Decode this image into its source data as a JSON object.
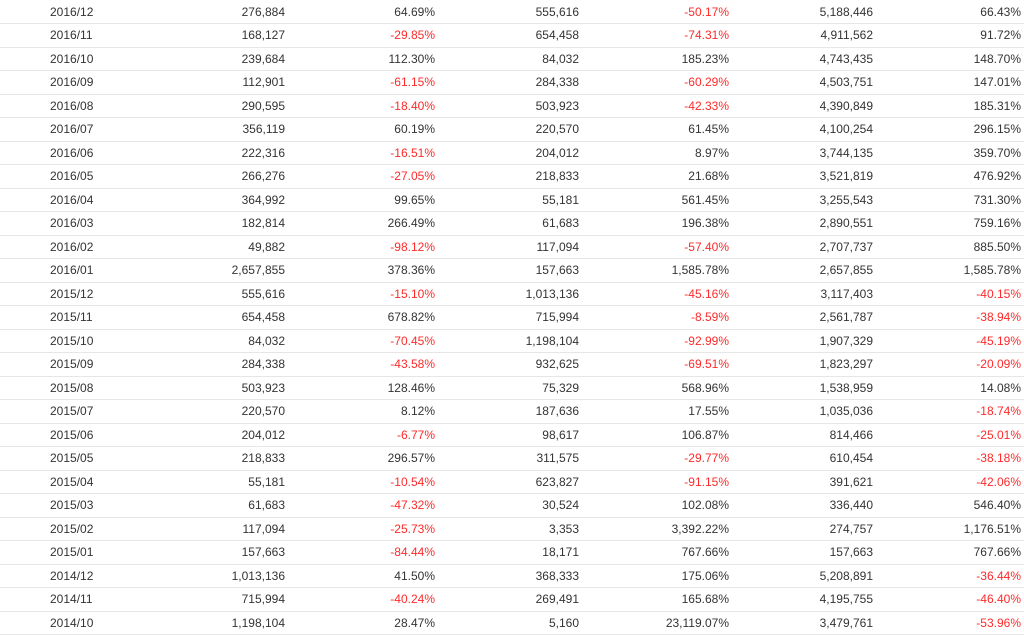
{
  "colors": {
    "text": "#333333",
    "negative": "#ff2a2a",
    "row_border": "#e6e6e6"
  },
  "rows": [
    {
      "month": "2016/12",
      "c1": "276,884",
      "c2": "64.69%",
      "c3": "555,616",
      "c4": "-50.17%",
      "c5": "5,188,446",
      "c6": "66.43%"
    },
    {
      "month": "2016/11",
      "c1": "168,127",
      "c2": "-29.85%",
      "c3": "654,458",
      "c4": "-74.31%",
      "c5": "4,911,562",
      "c6": "91.72%"
    },
    {
      "month": "2016/10",
      "c1": "239,684",
      "c2": "112.30%",
      "c3": "84,032",
      "c4": "185.23%",
      "c5": "4,743,435",
      "c6": "148.70%"
    },
    {
      "month": "2016/09",
      "c1": "112,901",
      "c2": "-61.15%",
      "c3": "284,338",
      "c4": "-60.29%",
      "c5": "4,503,751",
      "c6": "147.01%"
    },
    {
      "month": "2016/08",
      "c1": "290,595",
      "c2": "-18.40%",
      "c3": "503,923",
      "c4": "-42.33%",
      "c5": "4,390,849",
      "c6": "185.31%"
    },
    {
      "month": "2016/07",
      "c1": "356,119",
      "c2": "60.19%",
      "c3": "220,570",
      "c4": "61.45%",
      "c5": "4,100,254",
      "c6": "296.15%"
    },
    {
      "month": "2016/06",
      "c1": "222,316",
      "c2": "-16.51%",
      "c3": "204,012",
      "c4": "8.97%",
      "c5": "3,744,135",
      "c6": "359.70%"
    },
    {
      "month": "2016/05",
      "c1": "266,276",
      "c2": "-27.05%",
      "c3": "218,833",
      "c4": "21.68%",
      "c5": "3,521,819",
      "c6": "476.92%"
    },
    {
      "month": "2016/04",
      "c1": "364,992",
      "c2": "99.65%",
      "c3": "55,181",
      "c4": "561.45%",
      "c5": "3,255,543",
      "c6": "731.30%"
    },
    {
      "month": "2016/03",
      "c1": "182,814",
      "c2": "266.49%",
      "c3": "61,683",
      "c4": "196.38%",
      "c5": "2,890,551",
      "c6": "759.16%"
    },
    {
      "month": "2016/02",
      "c1": "49,882",
      "c2": "-98.12%",
      "c3": "117,094",
      "c4": "-57.40%",
      "c5": "2,707,737",
      "c6": "885.50%"
    },
    {
      "month": "2016/01",
      "c1": "2,657,855",
      "c2": "378.36%",
      "c3": "157,663",
      "c4": "1,585.78%",
      "c5": "2,657,855",
      "c6": "1,585.78%"
    },
    {
      "month": "2015/12",
      "c1": "555,616",
      "c2": "-15.10%",
      "c3": "1,013,136",
      "c4": "-45.16%",
      "c5": "3,117,403",
      "c6": "-40.15%"
    },
    {
      "month": "2015/11",
      "c1": "654,458",
      "c2": "678.82%",
      "c3": "715,994",
      "c4": "-8.59%",
      "c5": "2,561,787",
      "c6": "-38.94%"
    },
    {
      "month": "2015/10",
      "c1": "84,032",
      "c2": "-70.45%",
      "c3": "1,198,104",
      "c4": "-92.99%",
      "c5": "1,907,329",
      "c6": "-45.19%"
    },
    {
      "month": "2015/09",
      "c1": "284,338",
      "c2": "-43.58%",
      "c3": "932,625",
      "c4": "-69.51%",
      "c5": "1,823,297",
      "c6": "-20.09%"
    },
    {
      "month": "2015/08",
      "c1": "503,923",
      "c2": "128.46%",
      "c3": "75,329",
      "c4": "568.96%",
      "c5": "1,538,959",
      "c6": "14.08%"
    },
    {
      "month": "2015/07",
      "c1": "220,570",
      "c2": "8.12%",
      "c3": "187,636",
      "c4": "17.55%",
      "c5": "1,035,036",
      "c6": "-18.74%"
    },
    {
      "month": "2015/06",
      "c1": "204,012",
      "c2": "-6.77%",
      "c3": "98,617",
      "c4": "106.87%",
      "c5": "814,466",
      "c6": "-25.01%"
    },
    {
      "month": "2015/05",
      "c1": "218,833",
      "c2": "296.57%",
      "c3": "311,575",
      "c4": "-29.77%",
      "c5": "610,454",
      "c6": "-38.18%"
    },
    {
      "month": "2015/04",
      "c1": "55,181",
      "c2": "-10.54%",
      "c3": "623,827",
      "c4": "-91.15%",
      "c5": "391,621",
      "c6": "-42.06%"
    },
    {
      "month": "2015/03",
      "c1": "61,683",
      "c2": "-47.32%",
      "c3": "30,524",
      "c4": "102.08%",
      "c5": "336,440",
      "c6": "546.40%"
    },
    {
      "month": "2015/02",
      "c1": "117,094",
      "c2": "-25.73%",
      "c3": "3,353",
      "c4": "3,392.22%",
      "c5": "274,757",
      "c6": "1,176.51%"
    },
    {
      "month": "2015/01",
      "c1": "157,663",
      "c2": "-84.44%",
      "c3": "18,171",
      "c4": "767.66%",
      "c5": "157,663",
      "c6": "767.66%"
    },
    {
      "month": "2014/12",
      "c1": "1,013,136",
      "c2": "41.50%",
      "c3": "368,333",
      "c4": "175.06%",
      "c5": "5,208,891",
      "c6": "-36.44%"
    },
    {
      "month": "2014/11",
      "c1": "715,994",
      "c2": "-40.24%",
      "c3": "269,491",
      "c4": "165.68%",
      "c5": "4,195,755",
      "c6": "-46.40%"
    },
    {
      "month": "2014/10",
      "c1": "1,198,104",
      "c2": "28.47%",
      "c3": "5,160",
      "c4": "23,119.07%",
      "c5": "3,479,761",
      "c6": "-53.96%"
    }
  ]
}
